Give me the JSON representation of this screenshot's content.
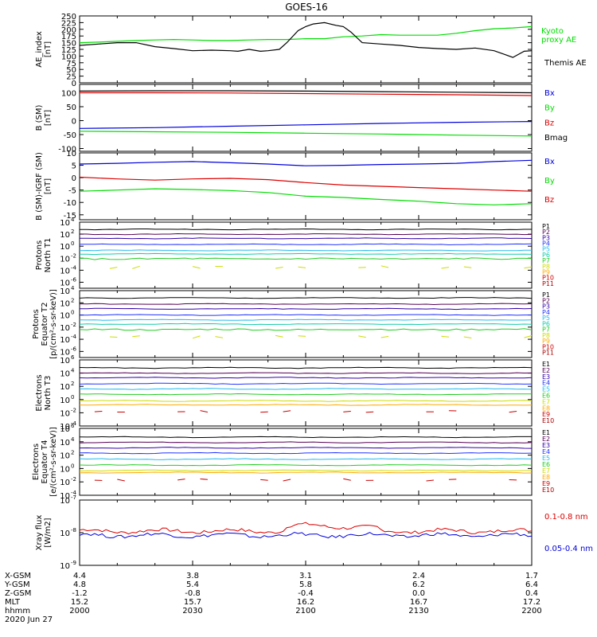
{
  "title": "GOES-16",
  "chart_data": [
    {
      "type": "line",
      "panel": "ae",
      "ylabel": [
        "AE_index",
        "[nT]"
      ],
      "ylim": [
        0,
        250
      ],
      "yticks": [
        0,
        25,
        50,
        75,
        100,
        125,
        150,
        175,
        200,
        225,
        250
      ],
      "series": [
        {
          "name": "Kyoto proxy AE",
          "color": "#00dd00",
          "x": [
            0,
            5,
            10,
            15,
            20,
            25,
            30,
            35,
            40,
            45,
            50,
            55,
            60,
            65,
            70,
            75,
            80,
            85,
            90,
            95,
            100,
            105,
            110,
            115,
            120
          ],
          "y": [
            150,
            152,
            155,
            158,
            160,
            162,
            160,
            158,
            158,
            160,
            162,
            162,
            165,
            165,
            172,
            175,
            180,
            178,
            178,
            178,
            185,
            195,
            202,
            205,
            210
          ]
        },
        {
          "name": "Themis AE",
          "color": "#000000",
          "x": [
            0,
            5,
            10,
            15,
            20,
            25,
            30,
            35,
            40,
            42,
            45,
            48,
            50,
            53,
            55,
            58,
            60,
            62,
            65,
            68,
            70,
            72,
            75,
            80,
            85,
            90,
            95,
            100,
            105,
            110,
            113,
            115,
            118,
            120
          ],
          "y": [
            140,
            145,
            150,
            150,
            135,
            128,
            120,
            122,
            120,
            118,
            125,
            118,
            120,
            125,
            150,
            195,
            210,
            220,
            225,
            215,
            210,
            190,
            150,
            145,
            140,
            132,
            128,
            125,
            130,
            120,
            105,
            95,
            118,
            120
          ]
        }
      ]
    },
    {
      "type": "line",
      "panel": "bsm",
      "ylabel": [
        "B (SM)",
        "[nT]"
      ],
      "ylim": [
        -110,
        130
      ],
      "yticks": [
        -100,
        -50,
        0,
        50,
        100
      ],
      "series": [
        {
          "name": "Bx",
          "color": "#0000dd",
          "x": [
            0,
            20,
            40,
            60,
            80,
            100,
            120
          ],
          "y": [
            -28,
            -25,
            -20,
            -15,
            -10,
            -6,
            -3
          ]
        },
        {
          "name": "By",
          "color": "#00dd00",
          "x": [
            0,
            20,
            40,
            60,
            80,
            100,
            120
          ],
          "y": [
            -38,
            -40,
            -42,
            -45,
            -48,
            -52,
            -55
          ]
        },
        {
          "name": "Bz",
          "color": "#dd0000",
          "x": [
            0,
            20,
            40,
            60,
            80,
            100,
            120
          ],
          "y": [
            100,
            100,
            99,
            97,
            95,
            93,
            90
          ]
        },
        {
          "name": "Bmag",
          "color": "#000000",
          "x": [
            0,
            20,
            40,
            60,
            80,
            100,
            120
          ],
          "y": [
            106,
            107,
            107,
            106,
            104,
            102,
            100
          ]
        }
      ]
    },
    {
      "type": "line",
      "panel": "bigrf",
      "ylabel": [
        "B (SM)-IGRF (SM)",
        "[nT]"
      ],
      "ylim": [
        -17,
        10
      ],
      "yticks": [
        -15,
        -10,
        -5,
        0,
        5,
        10
      ],
      "series": [
        {
          "name": "Bx",
          "color": "#0000dd",
          "x": [
            0,
            10,
            20,
            30,
            40,
            50,
            60,
            70,
            80,
            90,
            100,
            110,
            120
          ],
          "y": [
            5.5,
            5.8,
            6.2,
            6.5,
            6.0,
            5.5,
            4.8,
            5.0,
            5.3,
            5.5,
            5.8,
            6.5,
            7.0
          ]
        },
        {
          "name": "By",
          "color": "#00dd00",
          "x": [
            0,
            10,
            20,
            30,
            40,
            50,
            60,
            70,
            80,
            90,
            100,
            110,
            120
          ],
          "y": [
            -5.5,
            -5.0,
            -4.5,
            -4.8,
            -5.2,
            -6.0,
            -7.5,
            -8.0,
            -8.8,
            -9.5,
            -10.5,
            -11.0,
            -10.5
          ]
        },
        {
          "name": "Bz",
          "color": "#dd0000",
          "x": [
            0,
            10,
            20,
            30,
            40,
            50,
            60,
            70,
            80,
            90,
            100,
            110,
            120
          ],
          "y": [
            0.2,
            -0.5,
            -1.0,
            -0.5,
            -0.3,
            -0.8,
            -2.0,
            -3.0,
            -3.5,
            -4.0,
            -4.5,
            -5.0,
            -5.5
          ]
        }
      ]
    },
    {
      "type": "line",
      "panel": "protons-t1",
      "scale": "log",
      "ylabel": [
        "Protons",
        "North T1"
      ],
      "ylim_exp": [
        -7,
        4
      ],
      "ytick_exps": [
        4,
        2,
        0,
        -2,
        -4,
        -6
      ],
      "channels": [
        {
          "name": "P1",
          "color": "#000000",
          "log": 2.8
        },
        {
          "name": "P2",
          "color": "#550055",
          "log": 2.0
        },
        {
          "name": "P3",
          "color": "#3300aa",
          "log": 1.3
        },
        {
          "name": "P4",
          "color": "#2233ff",
          "log": 0.3
        },
        {
          "name": "P5",
          "color": "#22bbee",
          "log": -0.7
        },
        {
          "name": "P6",
          "color": "#11ccaa",
          "log": -1.3
        },
        {
          "name": "P7",
          "color": "#22cc22",
          "log": -2.1
        },
        {
          "name": "P8",
          "color": "#ccdd00",
          "log": -3.5
        },
        {
          "name": "P9",
          "color": "#ffaa00",
          "log": null
        },
        {
          "name": "P10",
          "color": "#cc0000",
          "log": null
        },
        {
          "name": "P11",
          "color": "#aa0000",
          "log": null
        }
      ]
    },
    {
      "type": "line",
      "panel": "protons-t2",
      "scale": "log",
      "ylabel": [
        "Protons",
        "Equator T2",
        "[p/(cm²-s-sr-keV)]"
      ],
      "ylim_exp": [
        -7,
        4
      ],
      "ytick_exps": [
        4,
        2,
        0,
        -2,
        -4,
        -6
      ],
      "channels": [
        {
          "name": "P1",
          "color": "#000000",
          "log": 2.8
        },
        {
          "name": "P2",
          "color": "#550055",
          "log": 1.8
        },
        {
          "name": "P3",
          "color": "#3300aa",
          "log": 1.0
        },
        {
          "name": "P4",
          "color": "#2233ff",
          "log": 0.0
        },
        {
          "name": "P5",
          "color": "#22bbee",
          "log": -0.8
        },
        {
          "name": "P6",
          "color": "#11ccaa",
          "log": -1.5
        },
        {
          "name": "P7",
          "color": "#22cc22",
          "log": -2.4
        },
        {
          "name": "P8",
          "color": "#ccdd00",
          "log": -3.6
        },
        {
          "name": "P9",
          "color": "#ffaa00",
          "log": null
        },
        {
          "name": "P10",
          "color": "#cc0000",
          "log": null
        },
        {
          "name": "P11",
          "color": "#aa0000",
          "log": null
        }
      ]
    },
    {
      "type": "line",
      "panel": "electrons-t3",
      "scale": "log",
      "ylabel": [
        "Electrons",
        "North T3"
      ],
      "ylim_exp": [
        -4,
        6
      ],
      "ytick_exps": [
        6,
        4,
        2,
        0,
        -2,
        -4
      ],
      "channels": [
        {
          "name": "E1",
          "color": "#000000",
          "log": 4.8
        },
        {
          "name": "E2",
          "color": "#550055",
          "log": 4.0
        },
        {
          "name": "E3",
          "color": "#3300aa",
          "log": 3.3
        },
        {
          "name": "E4",
          "color": "#2233ff",
          "log": 2.4
        },
        {
          "name": "E5",
          "color": "#22bbee",
          "log": 1.6
        },
        {
          "name": "E6",
          "color": "#22cc22",
          "log": 0.8
        },
        {
          "name": "E7",
          "color": "#ccdd00",
          "log": -0.2
        },
        {
          "name": "E8",
          "color": "#ffaa00",
          "log": -0.8
        },
        {
          "name": "E9",
          "color": "#cc0000",
          "log": -1.8
        },
        {
          "name": "E10",
          "color": "#aa0000",
          "log": null
        }
      ]
    },
    {
      "type": "line",
      "panel": "electrons-t4",
      "scale": "log",
      "ylabel": [
        "Electrons",
        "Equator T4",
        "[e/(cm²-s-sr-keV)]"
      ],
      "ylim_exp": [
        -4,
        6
      ],
      "ytick_exps": [
        6,
        4,
        2,
        0,
        -2,
        -4
      ],
      "channels": [
        {
          "name": "E1",
          "color": "#000000",
          "log": 4.7
        },
        {
          "name": "E2",
          "color": "#550055",
          "log": 3.9
        },
        {
          "name": "E3",
          "color": "#3300aa",
          "log": 3.1
        },
        {
          "name": "E4",
          "color": "#2233ff",
          "log": 2.3
        },
        {
          "name": "E5",
          "color": "#22bbee",
          "log": 1.4
        },
        {
          "name": "E6",
          "color": "#22cc22",
          "log": 0.5
        },
        {
          "name": "E7",
          "color": "#ccdd00",
          "log": -0.3
        },
        {
          "name": "E8",
          "color": "#ffaa00",
          "log": -0.6
        },
        {
          "name": "E9",
          "color": "#cc0000",
          "log": -1.7
        },
        {
          "name": "E10",
          "color": "#aa0000",
          "log": null
        }
      ]
    },
    {
      "type": "line",
      "panel": "xray",
      "scale": "log",
      "ylabel": [
        "Xray flux",
        "[W/m2]"
      ],
      "ylim_exp": [
        -9,
        -7
      ],
      "ytick_exps": [
        -7,
        -8,
        -9
      ],
      "series": [
        {
          "name": "0.1-0.8 nm",
          "color": "#dd0000",
          "base": -7.95
        },
        {
          "name": "0.05-0.4 nm",
          "color": "#0000dd",
          "base": -8.08
        }
      ]
    }
  ],
  "xaxis": {
    "rows": [
      {
        "label": "X-GSM",
        "values": [
          "4.4",
          "3.8",
          "3.1",
          "2.4",
          "1.7"
        ]
      },
      {
        "label": "Y-GSM",
        "values": [
          "4.8",
          "5.4",
          "5.8",
          "6.2",
          "6.4"
        ]
      },
      {
        "label": "Z-GSM",
        "values": [
          "-1.2",
          "-0.8",
          "-0.4",
          "0.0",
          "0.4"
        ]
      },
      {
        "label": "MLT",
        "values": [
          "15.2",
          "15.7",
          "16.2",
          "16.7",
          "17.2"
        ]
      },
      {
        "label": "hhmm",
        "values": [
          "2000",
          "2030",
          "2100",
          "2130",
          "2200"
        ]
      }
    ],
    "date": "2020 Jun 27",
    "minutes": [
      0,
      30,
      60,
      90,
      120
    ]
  }
}
